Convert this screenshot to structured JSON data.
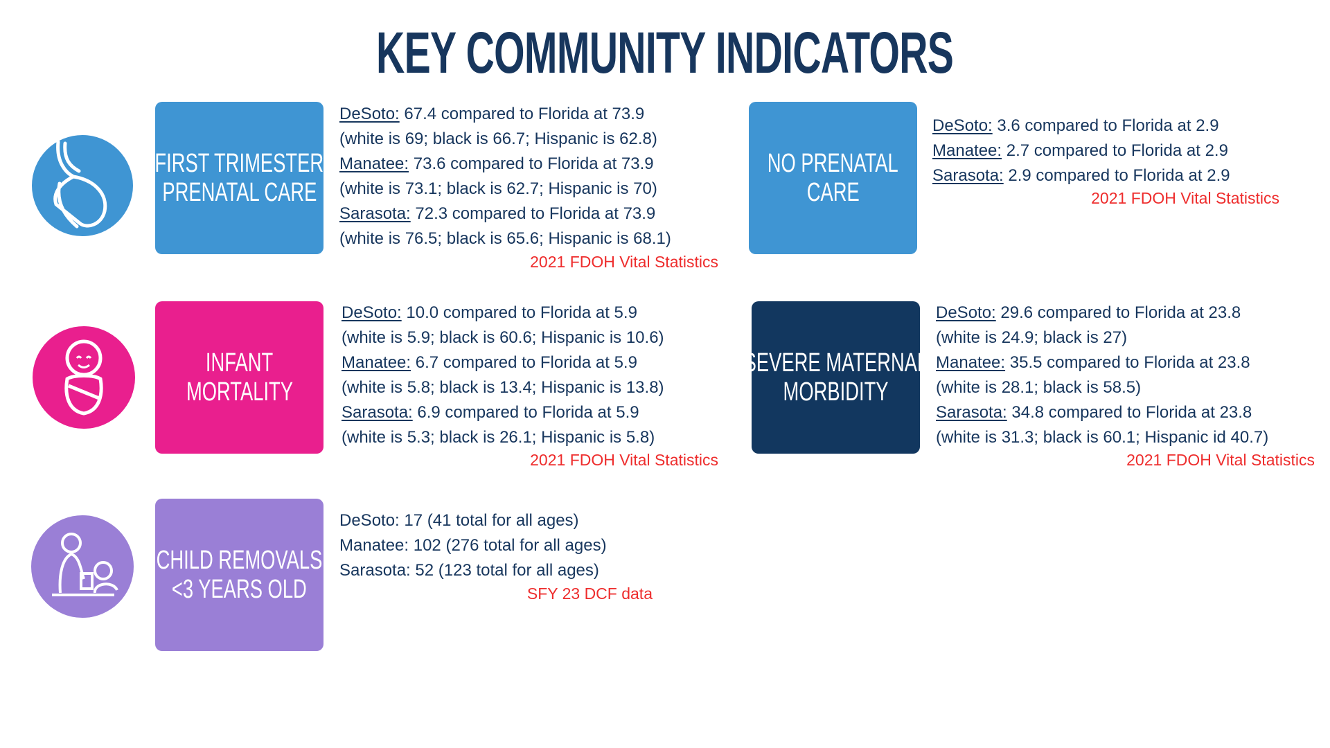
{
  "title": "KEY COMMUNITY INDICATORS",
  "indicators": [
    {
      "label": [
        "FIRST TRIMESTER",
        "PRENATAL CARE"
      ],
      "lines": [
        {
          "county": "DeSoto:",
          "text": " 67.4 compared to Florida at 73.9"
        },
        {
          "text": "(white is 69; black is 66.7; Hispanic is 62.8)"
        },
        {
          "county": "Manatee:",
          "text": " 73.6 compared to Florida at 73.9"
        },
        {
          "text": "(white is 73.1; black is 62.7; Hispanic is 70)"
        },
        {
          "county": "Sarasota:",
          "text": " 72.3 compared to Florida at 73.9"
        },
        {
          "text": "(white is 76.5; black is 65.6; Hispanic is 68.1)"
        }
      ],
      "source": "2021 FDOH Vital Statistics"
    },
    {
      "label": [
        "NO PRENATAL",
        "CARE"
      ],
      "lines": [
        {
          "county": "DeSoto:",
          "text": " 3.6 compared to Florida at 2.9"
        },
        {
          "county": "Manatee:",
          "text": " 2.7 compared to Florida at 2.9"
        },
        {
          "county": "Sarasota:",
          "text": " 2.9 compared to Florida at 2.9"
        }
      ],
      "source": "2021 FDOH Vital Statistics"
    },
    {
      "label": [
        "INFANT",
        "MORTALITY"
      ],
      "lines": [
        {
          "county": "DeSoto:",
          "text": " 10.0 compared to Florida at 5.9"
        },
        {
          "text": "(white is 5.9; black is 60.6; Hispanic is 10.6)"
        },
        {
          "county": "Manatee:",
          "text": " 6.7 compared to Florida at 5.9"
        },
        {
          "text": "(white is 5.8; black is 13.4; Hispanic is 13.8)"
        },
        {
          "county": "Sarasota:",
          "text": " 6.9 compared to Florida at 5.9"
        },
        {
          "text": "(white is 5.3; black is 26.1; Hispanic is 5.8)"
        }
      ],
      "source": "2021 FDOH Vital Statistics"
    },
    {
      "label": [
        "SEVERE MATERNAL",
        "MORBIDITY"
      ],
      "lines": [
        {
          "county": "DeSoto:",
          "text": " 29.6 compared to Florida at 23.8"
        },
        {
          "text": "(white is 24.9; black is 27)"
        },
        {
          "county": "Manatee:",
          "text": " 35.5 compared to Florida at 23.8"
        },
        {
          "text": "(white is 28.1; black is 58.5)"
        },
        {
          "county": "Sarasota:",
          "text": " 34.8 compared to Florida at 23.8"
        },
        {
          "text": "(white is 31.3; black is 60.1; Hispanic id 40.7)"
        }
      ],
      "source": "2021 FDOH Vital Statistics"
    },
    {
      "label": [
        "CHILD REMOVALS",
        "<3 YEARS OLD"
      ],
      "lines": [
        {
          "text": "DeSoto: 17 (41 total for all ages)"
        },
        {
          "text": "Manatee: 102 (276 total for all ages)"
        },
        {
          "text": "Sarasota: 52 (123 total for all ages)"
        }
      ],
      "source": "SFY 23 DCF data"
    }
  ]
}
